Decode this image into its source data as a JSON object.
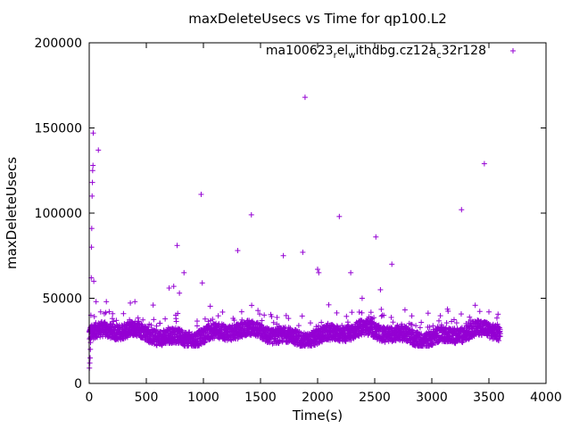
{
  "chart_data": {
    "type": "scatter",
    "title": "maxDeleteUsecs vs Time for qp100.L2",
    "xlabel": "Time(s)",
    "ylabel": "maxDeleteUsecs",
    "xlim": [
      0,
      4000
    ],
    "ylim": [
      0,
      200000
    ],
    "x_ticks": [
      "0",
      "500",
      "1000",
      "1500",
      "2000",
      "2500",
      "3000",
      "3500",
      "4000"
    ],
    "y_ticks": [
      "0",
      "50000",
      "100000",
      "150000",
      "200000"
    ],
    "grid": false,
    "legend_position": "top-right",
    "marker": "plus",
    "series": [
      {
        "name": "ma100623_rel_withdbg.cz12a_c32r128",
        "name_parts": [
          "ma100623",
          "r",
          "el",
          "w",
          "ithdbg.cz12a",
          "c",
          "32r128"
        ],
        "color": "#9400d3",
        "band": {
          "x_range": [
            0,
            3600
          ],
          "y_typical_range": [
            22000,
            40000
          ]
        },
        "points": [
          [
            2,
            9000
          ],
          [
            5,
            12000
          ],
          [
            8,
            15000
          ],
          [
            10,
            20000
          ],
          [
            12,
            24000
          ],
          [
            15,
            40000
          ],
          [
            18,
            62000
          ],
          [
            20,
            80000
          ],
          [
            22,
            91000
          ],
          [
            25,
            110000
          ],
          [
            28,
            118000
          ],
          [
            30,
            125000
          ],
          [
            33,
            128000
          ],
          [
            35,
            147000
          ],
          [
            40,
            60000
          ],
          [
            60,
            48000
          ],
          [
            80,
            137000
          ],
          [
            100,
            42000
          ],
          [
            150,
            48000
          ],
          [
            400,
            48000
          ],
          [
            560,
            46000
          ],
          [
            700,
            56000
          ],
          [
            740,
            57000
          ],
          [
            770,
            81000
          ],
          [
            790,
            53000
          ],
          [
            830,
            65000
          ],
          [
            980,
            111000
          ],
          [
            990,
            59000
          ],
          [
            1300,
            78000
          ],
          [
            1420,
            99000
          ],
          [
            1700,
            75000
          ],
          [
            1870,
            77000
          ],
          [
            1890,
            168000
          ],
          [
            2000,
            67000
          ],
          [
            2010,
            65000
          ],
          [
            2190,
            98000
          ],
          [
            2290,
            65000
          ],
          [
            2390,
            50000
          ],
          [
            2510,
            86000
          ],
          [
            2550,
            55000
          ],
          [
            2650,
            70000
          ],
          [
            3260,
            102000
          ],
          [
            3460,
            129000
          ],
          [
            3500,
            42000
          ],
          [
            3560,
            30000
          ]
        ]
      }
    ]
  }
}
